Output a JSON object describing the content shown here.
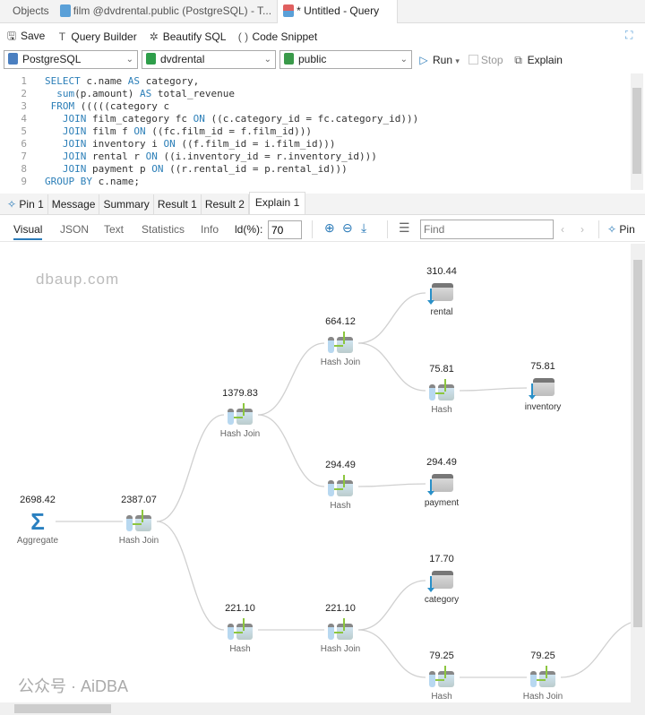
{
  "tabs": [
    {
      "label": "Objects"
    },
    {
      "label": "film @dvdrental.public (PostgreSQL) - T..."
    },
    {
      "label": "* Untitled - Query"
    }
  ],
  "toolbar": {
    "save": "Save",
    "query_builder": "Query Builder",
    "beautify": "Beautify SQL",
    "snippet": "Code Snippet",
    "run": "Run",
    "stop": "Stop",
    "explain": "Explain"
  },
  "selectors": {
    "connection": "PostgreSQL",
    "database": "dvdrental",
    "schema": "public"
  },
  "editor": {
    "lines": [
      {
        "n": "1",
        "text": "SELECT c.name AS category,"
      },
      {
        "n": "2",
        "text": "  sum(p.amount) AS total_revenue"
      },
      {
        "n": "3",
        "text": " FROM (((((category c"
      },
      {
        "n": "4",
        "text": "   JOIN film_category fc ON ((c.category_id = fc.category_id)))"
      },
      {
        "n": "5",
        "text": "   JOIN film f ON ((fc.film_id = f.film_id)))"
      },
      {
        "n": "6",
        "text": "   JOIN inventory i ON ((f.film_id = i.film_id)))"
      },
      {
        "n": "7",
        "text": "   JOIN rental r ON ((i.inventory_id = r.inventory_id)))"
      },
      {
        "n": "8",
        "text": "   JOIN payment p ON ((r.rental_id = p.rental_id)))"
      },
      {
        "n": "9",
        "text": "GROUP BY c.name;"
      }
    ]
  },
  "result_tabs": [
    "Pin 1",
    "Message",
    "Summary",
    "Result 1",
    "Result 2",
    "Explain 1"
  ],
  "sub_tabs": [
    "Visual",
    "JSON",
    "Text",
    "Statistics",
    "Info"
  ],
  "ld_label": "ld(%):",
  "ld_value": "70",
  "find_placeholder": "Find",
  "pin_label": "Pin",
  "plan_nodes": [
    {
      "value": "2698.42",
      "label": "Aggregate",
      "type": "aggregate"
    },
    {
      "value": "2387.07",
      "label": "Hash Join",
      "type": "join"
    },
    {
      "value": "1379.83",
      "label": "Hash Join",
      "type": "join"
    },
    {
      "value": "664.12",
      "label": "Hash Join",
      "type": "join"
    },
    {
      "value": "310.44",
      "label": "rental",
      "type": "table"
    },
    {
      "value": "75.81",
      "label": "Hash",
      "type": "join"
    },
    {
      "value": "75.81",
      "label": "inventory",
      "type": "table"
    },
    {
      "value": "294.49",
      "label": "Hash",
      "type": "join"
    },
    {
      "value": "294.49",
      "label": "payment",
      "type": "table"
    },
    {
      "value": "221.10",
      "label": "Hash",
      "type": "join"
    },
    {
      "value": "221.10",
      "label": "Hash Join",
      "type": "join"
    },
    {
      "value": "17.70",
      "label": "category",
      "type": "table"
    },
    {
      "value": "79.25",
      "label": "Hash",
      "type": "join"
    },
    {
      "value": "79.25",
      "label": "Hash Join",
      "type": "join"
    }
  ],
  "watermarks": [
    "dbaup.com",
    "公众号 · AiDBA"
  ],
  "colors": {
    "accent": "#2a7ab8",
    "keyword": "#2c7fb8",
    "edge": "#d0d0d0"
  }
}
